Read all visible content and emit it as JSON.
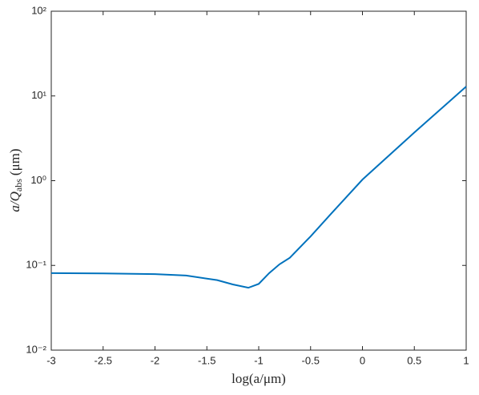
{
  "chart_data": {
    "type": "line",
    "xlabel": "log(a/μm)",
    "ylabel": {
      "main": "a/Q",
      "sub": "abs",
      "unit": "(μm)"
    },
    "x": [
      -3,
      -2.5,
      -2,
      -1.7,
      -1.4,
      -1.25,
      -1.1,
      -1.0,
      -0.9,
      -0.8,
      -0.7,
      -0.5,
      -0.3,
      0,
      0.5,
      1
    ],
    "series": [
      {
        "color": "#0072bd",
        "values": [
          0.081,
          0.0805,
          0.079,
          0.076,
          0.067,
          0.0596,
          0.0545,
          0.0605,
          0.081,
          0.103,
          0.123,
          0.22,
          0.41,
          1.03,
          3.7,
          12.9
        ]
      }
    ],
    "xlim": [
      -3,
      1
    ],
    "xticks": [
      -3,
      -2.5,
      -2,
      -1.5,
      -1,
      -0.5,
      0,
      0.5,
      1
    ],
    "ylim": [
      0.01,
      100
    ],
    "ylog": true,
    "yticks": [
      {
        "value": 0.01,
        "label": "10⁻²"
      },
      {
        "value": 0.1,
        "label": "10⁻¹"
      },
      {
        "value": 1,
        "label": "10⁰"
      },
      {
        "value": 10,
        "label": "10¹"
      },
      {
        "value": 100,
        "label": "10²"
      }
    ]
  }
}
